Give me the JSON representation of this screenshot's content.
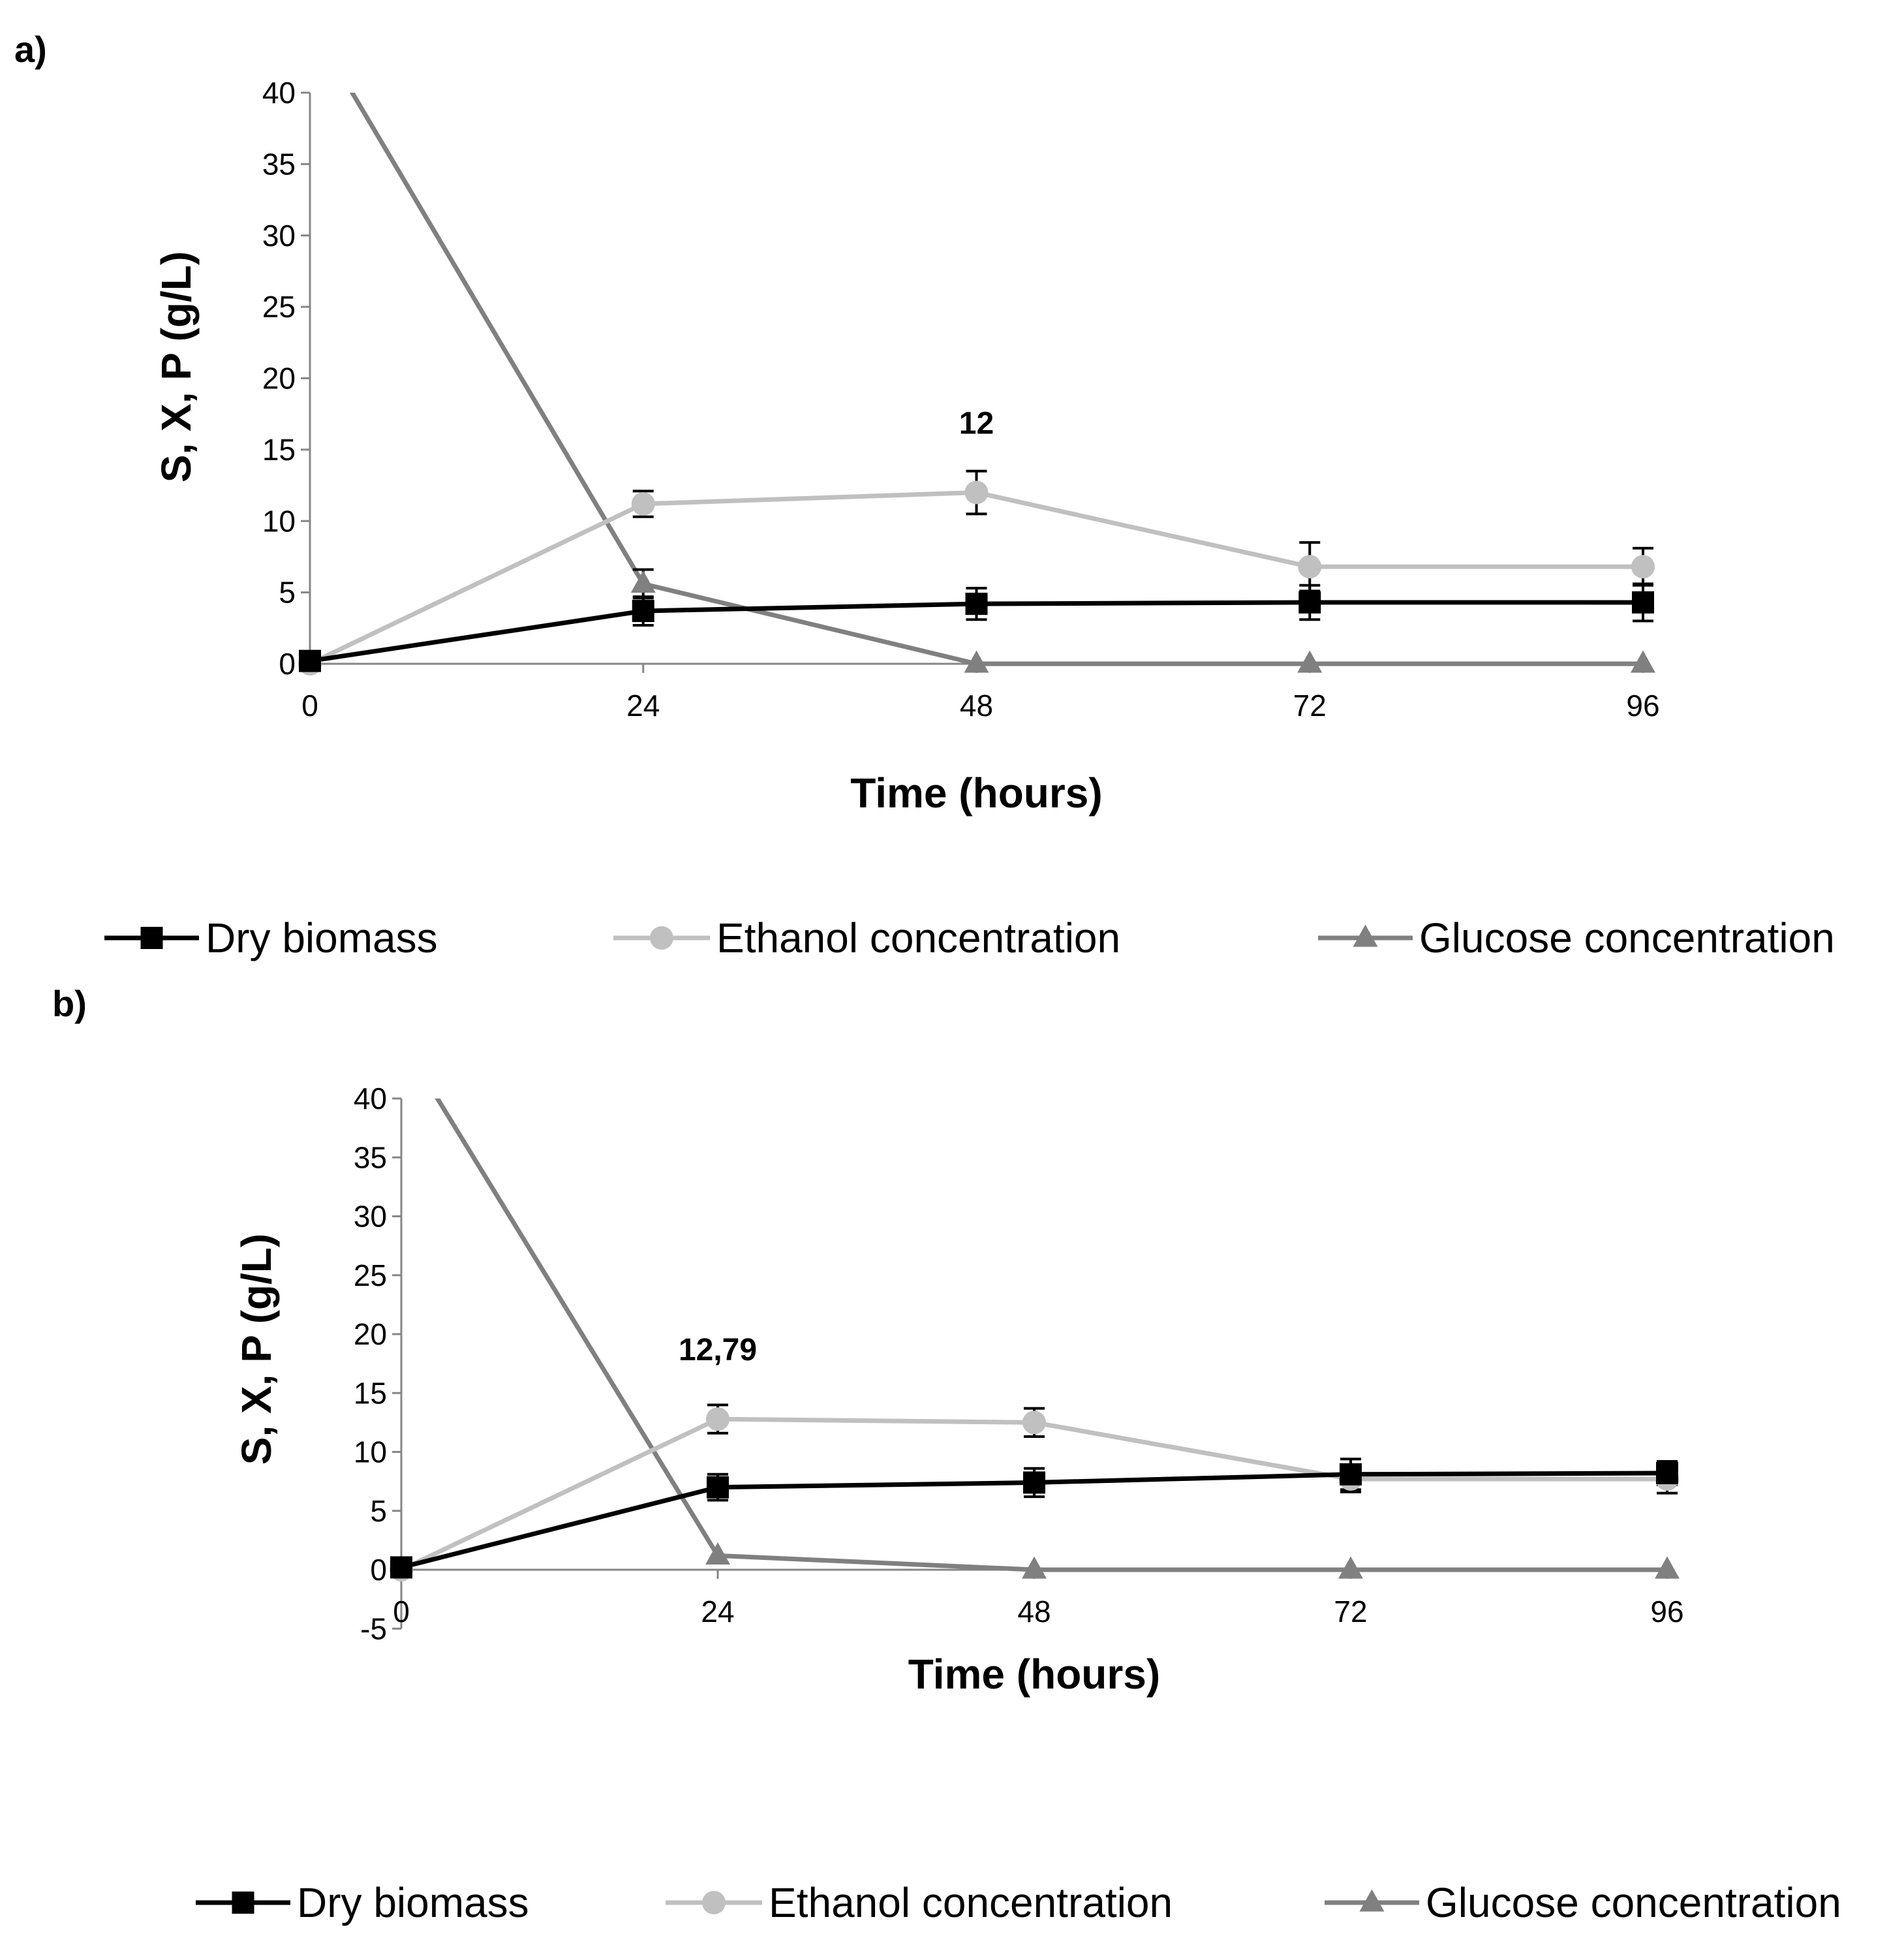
{
  "chart_data": [
    {
      "panel_label": "a)",
      "type": "line",
      "xlabel": "Time (hours)",
      "ylabel": "S, X, P (g/L)",
      "x": [
        0,
        24,
        48,
        72,
        96
      ],
      "x_tick_labels": [
        "0",
        "24",
        "48",
        "72",
        "96"
      ],
      "y_tick_labels": [
        "0",
        "5",
        "10",
        "15",
        "20",
        "25",
        "30",
        "35",
        "40"
      ],
      "ylim": [
        0,
        40
      ],
      "grid": false,
      "legend_position": "bottom",
      "annotation": {
        "text": "12",
        "x": 48,
        "y": 12
      },
      "series": [
        {
          "name": "Dry biomass",
          "marker": "square",
          "color": "#000000",
          "values": [
            0.2,
            3.7,
            4.2,
            4.3,
            4.3
          ],
          "errors": [
            0,
            1.0,
            1.1,
            1.2,
            1.3
          ]
        },
        {
          "name": "Ethanol concentration",
          "marker": "circle",
          "color": "#c0c0c0",
          "values": [
            0,
            11.2,
            12.0,
            6.8,
            6.8
          ],
          "errors": [
            0,
            0.9,
            1.5,
            1.7,
            1.3
          ]
        },
        {
          "name": "Glucose concentration",
          "marker": "triangle",
          "color": "#808080",
          "values": [
            45,
            5.6,
            0,
            0,
            0
          ],
          "errors": [
            0,
            1.0,
            0,
            0,
            0
          ]
        }
      ]
    },
    {
      "panel_label": "b)",
      "type": "line",
      "xlabel": "Time (hours)",
      "ylabel": "S, X, P (g/L)",
      "x": [
        0,
        24,
        48,
        72,
        96
      ],
      "x_tick_labels": [
        "0",
        "24",
        "48",
        "72",
        "96"
      ],
      "y_tick_labels": [
        "-5",
        "0",
        "5",
        "10",
        "15",
        "20",
        "25",
        "30",
        "35",
        "40"
      ],
      "ylim": [
        -5,
        40
      ],
      "grid": false,
      "legend_position": "bottom",
      "annotation": {
        "text": "12,79",
        "x": 24,
        "y": 12.79
      },
      "series": [
        {
          "name": "Dry biomass",
          "marker": "square",
          "color": "#000000",
          "values": [
            0.2,
            7.0,
            7.4,
            8.1,
            8.2
          ],
          "errors": [
            0,
            1.1,
            1.2,
            1.3,
            1.0
          ]
        },
        {
          "name": "Ethanol concentration",
          "marker": "circle",
          "color": "#c0c0c0",
          "values": [
            0,
            12.79,
            12.5,
            7.7,
            7.7
          ],
          "errors": [
            0,
            1.2,
            1.2,
            1.1,
            1.2
          ]
        },
        {
          "name": "Glucose concentration",
          "marker": "triangle",
          "color": "#808080",
          "values": [
            45,
            1.2,
            0,
            0,
            0
          ],
          "errors": [
            0,
            0,
            0,
            0,
            0
          ]
        }
      ]
    }
  ]
}
